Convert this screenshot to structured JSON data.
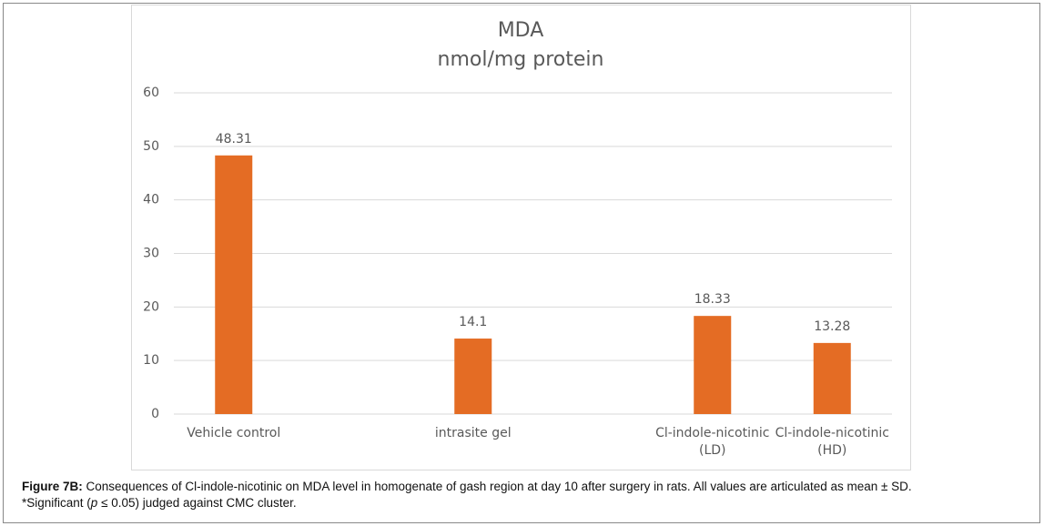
{
  "chart_data": {
    "type": "bar",
    "title": "MDA",
    "subtitle": "nmol/mg protein",
    "categories": [
      "Vehicle control",
      null,
      "intrasite gel",
      null,
      "Cl-indole-nicotinic (LD)",
      "Cl-indole-nicotinic (HD)"
    ],
    "values": [
      48.31,
      null,
      14.1,
      null,
      18.33,
      13.28
    ],
    "color": "#e46c24",
    "ylim": [
      0,
      60
    ],
    "yticks": [
      0,
      10,
      20,
      30,
      40,
      50,
      60
    ],
    "grid": true
  },
  "caption": {
    "label": "Figure 7B:",
    "line1": "Consequences of Cl-indole-nicotinic on MDA level in homogenate of gash region at day 10 after surgery in rats. All values are articulated as mean ± SD.",
    "line2_start": "*Significant (",
    "line2_italic": "p",
    "line2_end": " ≤ 0.05) judged against CMC cluster."
  }
}
